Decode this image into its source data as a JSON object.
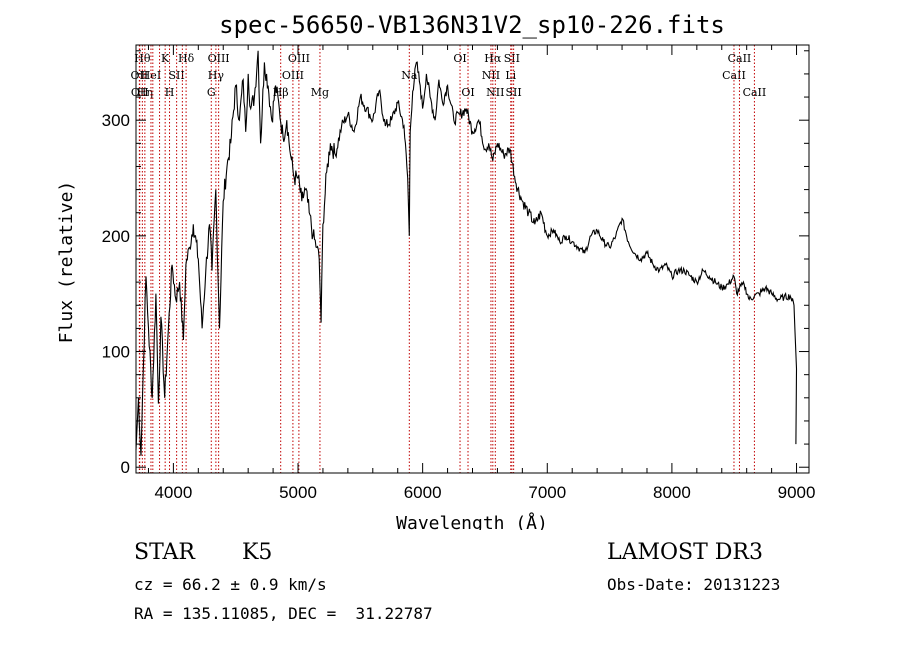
{
  "chart_data": {
    "type": "line",
    "title": "spec-56650-VB136N31V2_sp10-226.fits",
    "xlabel": "Wavelength (Å)",
    "ylabel": "Flux (relative)",
    "xlim": [
      3700,
      9100
    ],
    "ylim": [
      -5,
      365
    ],
    "xticks": [
      4000,
      5000,
      6000,
      7000,
      8000,
      9000
    ],
    "yticks": [
      0,
      100,
      200,
      300
    ],
    "grid": false,
    "series": [
      {
        "x": [
          3700,
          3720,
          3740,
          3760,
          3780,
          3800,
          3830,
          3860,
          3880,
          3900,
          3930,
          3960,
          3990,
          4020,
          4050,
          4080,
          4100,
          4130,
          4160,
          4200,
          4230,
          4260,
          4290,
          4310,
          4340,
          4370,
          4400,
          4430,
          4460,
          4500,
          4530,
          4560,
          4580,
          4600,
          4620,
          4650,
          4680,
          4700,
          4730,
          4760,
          4790,
          4820,
          4850,
          4880,
          4910,
          4940,
          4970,
          5000,
          5030,
          5060,
          5090,
          5120,
          5150,
          5170,
          5185,
          5200,
          5230,
          5260,
          5300,
          5350,
          5400,
          5450,
          5500,
          5550,
          5600,
          5650,
          5700,
          5750,
          5800,
          5850,
          5880,
          5893,
          5900,
          5920,
          5950,
          5980,
          6000,
          6030,
          6060,
          6100,
          6130,
          6160,
          6200,
          6250,
          6300,
          6350,
          6400,
          6450,
          6500,
          6530,
          6563,
          6600,
          6650,
          6700,
          6750,
          6800,
          6850,
          6900,
          6950,
          7000,
          7050,
          7100,
          7150,
          7200,
          7250,
          7300,
          7350,
          7400,
          7450,
          7500,
          7550,
          7600,
          7650,
          7700,
          7750,
          7800,
          7850,
          7900,
          7950,
          8000,
          8050,
          8100,
          8150,
          8200,
          8250,
          8300,
          8350,
          8400,
          8450,
          8498,
          8520,
          8542,
          8580,
          8620,
          8662,
          8700,
          8750,
          8800,
          8850,
          8900,
          8950,
          8980,
          9000
        ],
        "y": [
          15,
          60,
          10,
          90,
          165,
          120,
          60,
          150,
          55,
          130,
          60,
          120,
          175,
          145,
          160,
          110,
          175,
          190,
          210,
          180,
          120,
          170,
          210,
          170,
          240,
          120,
          230,
          260,
          280,
          330,
          300,
          335,
          290,
          340,
          310,
          320,
          360,
          280,
          350,
          330,
          300,
          330,
          310,
          285,
          300,
          270,
          250,
          250,
          230,
          240,
          220,
          200,
          190,
          180,
          125,
          210,
          255,
          280,
          270,
          295,
          305,
          290,
          320,
          310,
          300,
          325,
          295,
          300,
          315,
          295,
          250,
          200,
          290,
          325,
          350,
          330,
          310,
          340,
          320,
          300,
          335,
          315,
          330,
          300,
          305,
          310,
          290,
          300,
          275,
          280,
          265,
          280,
          270,
          275,
          245,
          230,
          220,
          210,
          220,
          200,
          205,
          195,
          200,
          195,
          190,
          185,
          200,
          205,
          195,
          190,
          200,
          215,
          195,
          185,
          180,
          185,
          175,
          170,
          175,
          165,
          170,
          170,
          165,
          160,
          170,
          165,
          160,
          155,
          158,
          165,
          150,
          155,
          158,
          145,
          148,
          150,
          155,
          150,
          145,
          147,
          148,
          140,
          85
        ]
      }
    ],
    "lines": [
      {
        "x": 3727,
        "labels": [
          "OII"
        ],
        "row": 2
      },
      {
        "x": 3730,
        "labels": [
          "OII"
        ],
        "row": 3
      },
      {
        "x": 3751,
        "labels": [
          "Hθ"
        ],
        "row": 1
      },
      {
        "x": 3771,
        "labels": [
          "Hη"
        ],
        "row": 3
      },
      {
        "x": 3820,
        "labels": [
          "HeI"
        ],
        "row": 2
      },
      {
        "x": 3835,
        "labels": [],
        "row": 1
      },
      {
        "x": 3889,
        "labels": [],
        "row": 1
      },
      {
        "x": 3934,
        "labels": [
          "K"
        ],
        "row": 1
      },
      {
        "x": 3969,
        "labels": [
          "H"
        ],
        "row": 3
      },
      {
        "x": 4026,
        "labels": [
          "SII"
        ],
        "row": 2
      },
      {
        "x": 4072,
        "labels": [],
        "row": 2
      },
      {
        "x": 4102,
        "labels": [
          "Hδ"
        ],
        "row": 1
      },
      {
        "x": 4304,
        "labels": [
          "G"
        ],
        "row": 3
      },
      {
        "x": 4341,
        "labels": [
          "Hγ"
        ],
        "row": 2
      },
      {
        "x": 4363,
        "labels": [
          "OIII"
        ],
        "row": 1
      },
      {
        "x": 4861,
        "labels": [
          "Hβ"
        ],
        "row": 3
      },
      {
        "x": 4959,
        "labels": [
          "OIII"
        ],
        "row": 2
      },
      {
        "x": 5007,
        "labels": [
          "OIII"
        ],
        "row": 1
      },
      {
        "x": 5176,
        "labels": [
          "Mg"
        ],
        "row": 3
      },
      {
        "x": 5893,
        "labels": [
          "Na"
        ],
        "row": 2
      },
      {
        "x": 6300,
        "labels": [
          "OI"
        ],
        "row": 1
      },
      {
        "x": 6364,
        "labels": [
          "OI"
        ],
        "row": 3
      },
      {
        "x": 6548,
        "labels": [
          "NII"
        ],
        "row": 2
      },
      {
        "x": 6563,
        "labels": [
          "Hα"
        ],
        "row": 1
      },
      {
        "x": 6583,
        "labels": [
          "NII"
        ],
        "row": 3
      },
      {
        "x": 6707,
        "labels": [
          "Li"
        ],
        "row": 2
      },
      {
        "x": 6716,
        "labels": [
          "SII"
        ],
        "row": 1
      },
      {
        "x": 6730,
        "labels": [
          "SII"
        ],
        "row": 3
      },
      {
        "x": 8498,
        "labels": [
          "CaII"
        ],
        "row": 2
      },
      {
        "x": 8542,
        "labels": [
          "CaII"
        ],
        "row": 1
      },
      {
        "x": 8662,
        "labels": [
          "CaII"
        ],
        "row": 3
      }
    ]
  },
  "info": {
    "class": "STAR",
    "subclass": "K5",
    "survey": "LAMOST DR3",
    "cz": "cz = 66.2 ± 0.9 km/s",
    "obs_date": "Obs-Date: 20131223",
    "coords": "RA = 135.11085, DEC =  31.22787"
  }
}
